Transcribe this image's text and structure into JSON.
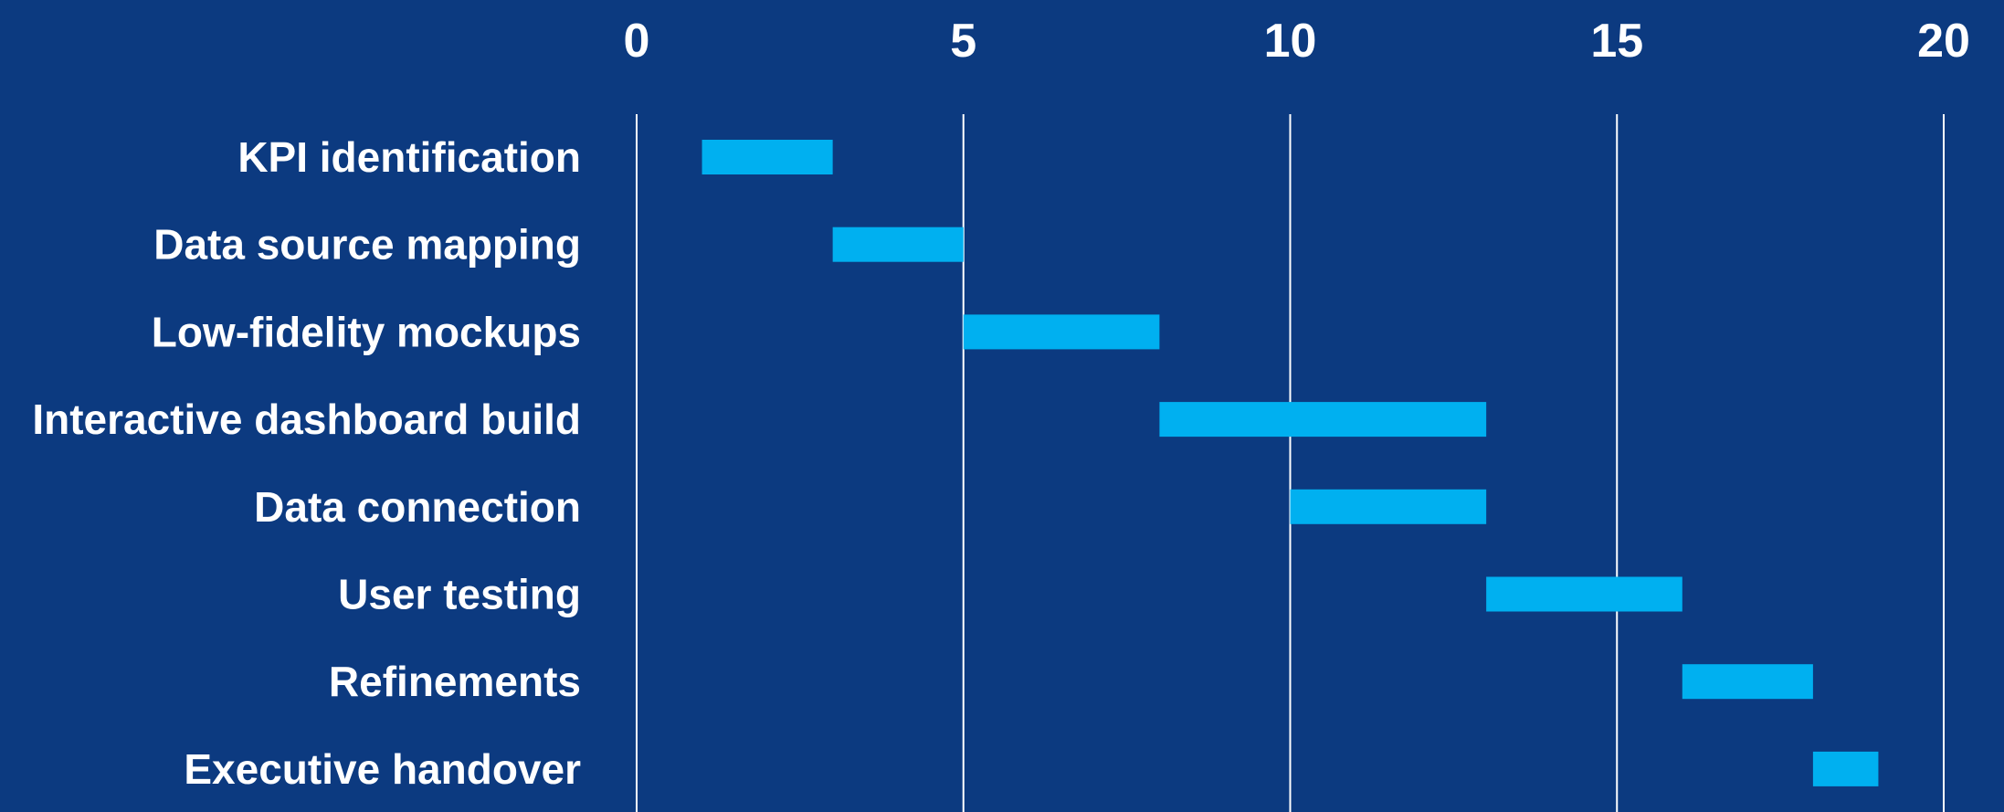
{
  "chart_data": {
    "type": "bar",
    "orientation": "horizontal",
    "style": "gantt",
    "title": "",
    "xlabel": "",
    "ylabel": "",
    "xlim": [
      0,
      20
    ],
    "x_ticks": [
      0,
      5,
      10,
      15,
      20
    ],
    "x_axis_position": "top",
    "grid": true,
    "legend": "none",
    "background_color": "#0c3a80",
    "bar_color": "#00b0f0",
    "text_color": "#ffffff",
    "categories": [
      "KPI identification",
      "Data source mapping",
      "Low-fidelity mockups",
      "Interactive dashboard build",
      "Data connection",
      "User testing",
      "Refinements",
      "Executive handover"
    ],
    "series": [
      {
        "start": [
          1,
          3,
          5,
          8,
          10,
          13,
          16,
          18
        ],
        "end": [
          3,
          5,
          8,
          13,
          13,
          16,
          18,
          19
        ]
      }
    ]
  }
}
